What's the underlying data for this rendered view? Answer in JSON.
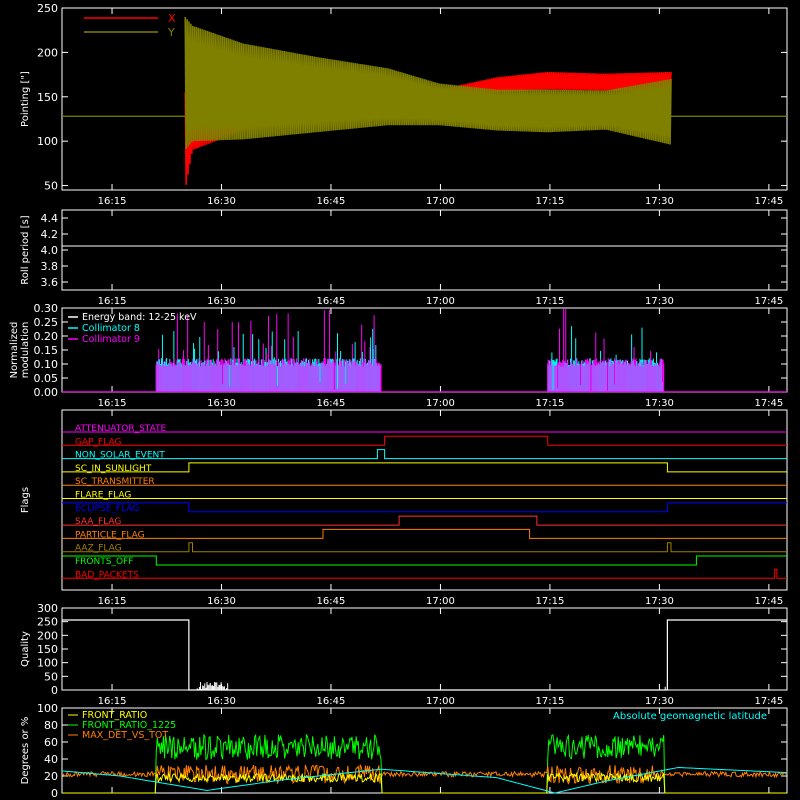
{
  "chart_data": [
    {
      "type": "line",
      "ylabel": "Pointing [\"]",
      "ylim": [
        45,
        250
      ],
      "yticks": [
        50,
        100,
        150,
        200,
        250
      ],
      "xlim_min": [
        0,
        100
      ],
      "xticks": [
        "16:15",
        "16:30",
        "16:45",
        "17:00",
        "17:15",
        "17:30",
        "17:45"
      ],
      "legend_position": "top-left",
      "series": [
        {
          "name": "X",
          "color": "#ff0000",
          "baseline": 128,
          "start_min": 17,
          "end_min": 84,
          "envelope_x": [
            17,
            18,
            25,
            35,
            45,
            52,
            60,
            67,
            75,
            84
          ],
          "lower": [
            45,
            90,
            112,
            124,
            132,
            145,
            155,
            158,
            157,
            154
          ],
          "upper": [
            155,
            140,
            140,
            140,
            142,
            158,
            172,
            178,
            176,
            178
          ]
        },
        {
          "name": "Y",
          "color": "#808000",
          "baseline": 128,
          "start_min": 17,
          "end_min": 84,
          "envelope_x": [
            17,
            18,
            25,
            35,
            45,
            52,
            60,
            67,
            75,
            84
          ],
          "lower": [
            90,
            100,
            102,
            110,
            118,
            118,
            112,
            110,
            113,
            96
          ],
          "upper": [
            240,
            230,
            210,
            195,
            182,
            165,
            158,
            158,
            157,
            170
          ]
        }
      ]
    },
    {
      "type": "line",
      "ylabel": "Roll period [s]",
      "ylim": [
        3.5,
        4.5
      ],
      "yticks": [
        "3.6",
        "3.8",
        "4.0",
        "4.2",
        "4.4"
      ],
      "xticks": [
        "16:15",
        "16:30",
        "16:45",
        "17:00",
        "17:15",
        "17:30",
        "17:45"
      ],
      "series": [
        {
          "color": "#ffffff",
          "value": 4.05
        }
      ]
    },
    {
      "type": "bar",
      "ylabel": "Normalized modulation",
      "ylim": [
        0,
        0.3
      ],
      "yticks": [
        "0.00",
        "0.05",
        "0.10",
        "0.15",
        "0.20",
        "0.25",
        "0.30"
      ],
      "xticks": [
        "16:15",
        "16:30",
        "16:45",
        "17:00",
        "17:15",
        "17:30",
        "17:45"
      ],
      "legend": [
        "Energy band: 12-25 keV",
        "Collimator 8",
        "Collimator 9"
      ],
      "active_intervals": [
        [
          13,
          44
        ],
        [
          67,
          83
        ]
      ],
      "series": [
        {
          "name": "Collimator 8",
          "color": "#00ffff",
          "baseline": 0.1,
          "max": 0.25
        },
        {
          "name": "Collimator 9",
          "color": "#ff00ff",
          "baseline": 0.1,
          "max": 0.3
        }
      ]
    },
    {
      "type": "line",
      "ylabel": "Flags",
      "xticks": [
        "16:15",
        "16:30",
        "16:45",
        "17:00",
        "17:15",
        "17:30",
        "17:45"
      ],
      "flags": [
        {
          "name": "ATTENUATOR_STATE",
          "color": "#ff00ff",
          "high": []
        },
        {
          "name": "GAP_FLAG",
          "color": "#ff0000",
          "high": [
            [
              44.5,
              67
            ]
          ]
        },
        {
          "name": "NON_SOLAR_EVENT",
          "color": "#00ffff",
          "high": [
            [
              43.5,
              44.5
            ]
          ]
        },
        {
          "name": "SC_IN_SUNLIGHT",
          "color": "#ffff00",
          "high": [
            [
              17.5,
              83.5
            ]
          ]
        },
        {
          "name": "SC_TRANSMITTER",
          "color": "#ff8000",
          "high": []
        },
        {
          "name": "FLARE_FLAG",
          "color": "#ffff00",
          "high": []
        },
        {
          "name": "ECLIPSE_FLAG",
          "color": "#0000ff",
          "high": [
            [
              0,
              17.5
            ],
            [
              83.5,
              100
            ]
          ]
        },
        {
          "name": "SAA_FLAG",
          "color": "#ff3030",
          "high": [
            [
              46.5,
              65.5
            ]
          ]
        },
        {
          "name": "PARTICLE_FLAG",
          "color": "#ff8000",
          "high": [
            [
              36,
              64.5
            ]
          ]
        },
        {
          "name": "AAZ_FLAG",
          "color": "#a08000",
          "high": [
            [
              17.5,
              18
            ],
            [
              83.5,
              84
            ]
          ]
        },
        {
          "name": "FRONTS_OFF",
          "color": "#00ff00",
          "high": [
            [
              0,
              13
            ],
            [
              87.5,
              100
            ]
          ]
        },
        {
          "name": "BAD_PACKETS",
          "color": "#ff0000",
          "high": [
            [
              98.3,
              98.6
            ]
          ]
        }
      ]
    },
    {
      "type": "line",
      "ylabel": "Quality",
      "ylim": [
        0,
        300
      ],
      "yticks": [
        0,
        50,
        100,
        150,
        200,
        250,
        300
      ],
      "xticks": [
        "16:15",
        "16:30",
        "16:45",
        "17:00",
        "17:15",
        "17:30",
        "17:45"
      ],
      "series": [
        {
          "color": "#ffffff",
          "high": 256,
          "low_start": 17.5,
          "low_end": 83.5
        }
      ]
    },
    {
      "type": "line",
      "ylabel": "Degrees or %",
      "ylim": [
        0,
        100
      ],
      "yticks": [
        0,
        20,
        40,
        60,
        80,
        100
      ],
      "xticks": [
        "16:15",
        "16:30",
        "16:45",
        "17:00",
        "17:15",
        "17:30",
        "17:45"
      ],
      "series": [
        {
          "name": "FRONT_RATIO",
          "color": "#ffff00",
          "level": 18
        },
        {
          "name": "FRONT_RATIO_1225",
          "color": "#00ff00",
          "level": 48
        },
        {
          "name": "MAX_DET_VS_TOT",
          "color": "#ff8000",
          "level": 22
        },
        {
          "name": "Absolute geomagnetic latitude",
          "color": "#00ffff",
          "points_x": [
            0,
            8,
            20,
            30,
            44,
            60,
            68,
            75,
            85,
            100
          ],
          "points_y": [
            26,
            20,
            3,
            15,
            28,
            18,
            0,
            14,
            30,
            24
          ]
        }
      ]
    }
  ]
}
